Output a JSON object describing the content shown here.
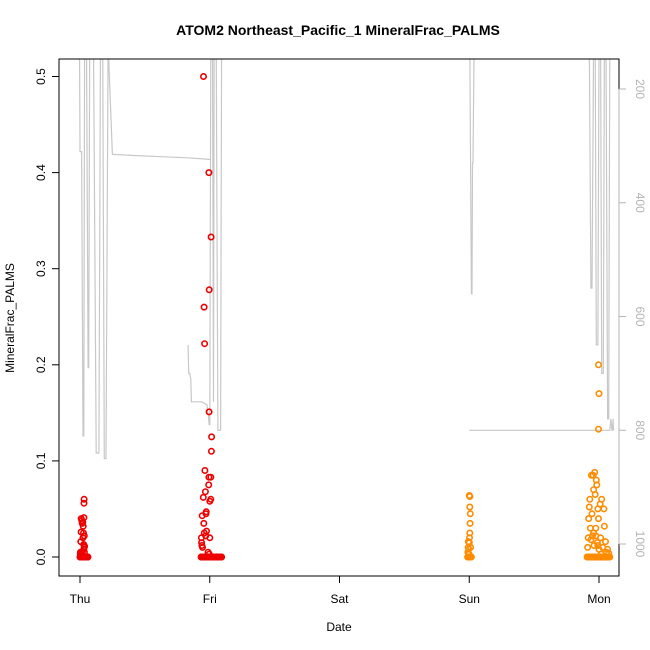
{
  "chart_data": {
    "type": "scatter",
    "title": "ATOM2 Northeast_Pacific_1 MineralFrac_PALMS",
    "xlabel": "Date",
    "ylabel": "MineralFrac_PALMS",
    "x_ticks": [
      "Thu",
      "Fri",
      "Sat",
      "Sun",
      "Mon"
    ],
    "ylim": [
      0,
      0.52
    ],
    "y_ticks": [
      "0.0",
      "0.1",
      "0.2",
      "0.3",
      "0.4",
      "0.5"
    ],
    "y2_ticks": [
      "200",
      "400",
      "600",
      "800",
      "1000"
    ],
    "y2lim": [
      1050,
      120
    ],
    "grid": false,
    "colors": {
      "series1": "#ee0000",
      "series2": "#ff8c00",
      "altitude": "#c8c8c8",
      "axis": "#000000",
      "right_axis": "#b4b4b4"
    },
    "series": [
      {
        "color": "#ee0000",
        "points": [
          [
            0.0,
            0
          ],
          [
            0.03,
            0
          ],
          [
            0.06,
            0
          ],
          [
            0.09,
            0
          ],
          [
            0.12,
            0
          ],
          [
            0.15,
            0
          ],
          [
            0.18,
            0
          ],
          [
            0.21,
            0
          ],
          [
            0.24,
            0
          ],
          [
            0.27,
            0
          ],
          [
            0.3,
            0
          ],
          [
            0.33,
            0
          ],
          [
            0.36,
            0
          ],
          [
            0.39,
            0
          ],
          [
            0.42,
            0
          ],
          [
            0.45,
            0
          ],
          [
            0.48,
            0
          ],
          [
            0.51,
            0
          ],
          [
            0.54,
            0
          ],
          [
            0.57,
            0
          ],
          [
            0.6,
            0
          ],
          [
            0.63,
            0
          ],
          [
            0.66,
            0
          ],
          [
            0.69,
            0
          ],
          [
            0.72,
            0
          ],
          [
            0.75,
            0
          ],
          [
            0.78,
            0
          ],
          [
            0.81,
            0
          ],
          [
            0.84,
            0
          ],
          [
            0.87,
            0
          ],
          [
            0.9,
            0
          ],
          [
            0.93,
            0
          ],
          [
            0.96,
            0
          ],
          [
            0.99,
            0
          ],
          [
            1.02,
            0
          ],
          [
            1.05,
            0
          ],
          [
            1.08,
            0
          ],
          [
            1.11,
            0
          ],
          [
            1.14,
            0
          ],
          [
            1.17,
            0
          ],
          [
            1.2,
            0
          ],
          [
            1.23,
            0
          ],
          [
            1.26,
            0
          ],
          [
            1.29,
            0
          ],
          [
            1.32,
            0
          ],
          [
            1.35,
            0
          ],
          [
            1.38,
            0
          ],
          [
            1.41,
            0
          ],
          [
            1.44,
            0
          ],
          [
            1.47,
            0
          ],
          [
            0.06,
            0.003
          ],
          [
            0.1,
            0.005
          ],
          [
            0.15,
            0.016
          ],
          [
            0.2,
            0.026
          ],
          [
            0.22,
            0.04
          ],
          [
            0.28,
            0.002
          ],
          [
            0.33,
            0.038
          ],
          [
            0.4,
            0.035
          ],
          [
            0.45,
            0.005
          ],
          [
            0.52,
            0.036
          ],
          [
            0.55,
            0.02
          ],
          [
            0.6,
            0.032
          ],
          [
            0.65,
            0.025
          ],
          [
            0.68,
            0.013
          ],
          [
            0.7,
            0.008
          ],
          [
            0.72,
            0.041
          ],
          [
            0.74,
            0.056
          ],
          [
            0.76,
            0.06
          ],
          [
            0.78,
            0.01
          ],
          [
            0.8,
            0.022
          ],
          [
            0.82,
            0.005
          ],
          [
            0.85,
            0.011
          ],
          [
            22.4,
            0
          ],
          [
            22.5,
            0
          ],
          [
            22.6,
            0
          ],
          [
            22.7,
            0
          ],
          [
            22.8,
            0
          ],
          [
            22.9,
            0
          ],
          [
            23.0,
            0
          ],
          [
            23.1,
            0
          ],
          [
            23.2,
            0
          ],
          [
            23.3,
            0
          ],
          [
            23.4,
            0
          ],
          [
            23.5,
            0
          ],
          [
            23.6,
            0
          ],
          [
            23.7,
            0
          ],
          [
            23.8,
            0
          ],
          [
            23.9,
            0
          ],
          [
            24.0,
            0
          ],
          [
            24.1,
            0
          ],
          [
            24.2,
            0
          ],
          [
            24.3,
            0
          ],
          [
            24.4,
            0
          ],
          [
            24.5,
            0
          ],
          [
            24.6,
            0
          ],
          [
            24.7,
            0
          ],
          [
            24.8,
            0
          ],
          [
            24.9,
            0
          ],
          [
            25.0,
            0
          ],
          [
            25.1,
            0
          ],
          [
            25.2,
            0
          ],
          [
            25.3,
            0
          ],
          [
            25.4,
            0
          ],
          [
            25.5,
            0
          ],
          [
            25.6,
            0
          ],
          [
            25.7,
            0
          ],
          [
            25.8,
            0
          ],
          [
            25.9,
            0
          ],
          [
            26.0,
            0
          ],
          [
            26.1,
            0
          ],
          [
            26.2,
            0
          ],
          [
            22.45,
            0.02
          ],
          [
            22.5,
            0.015
          ],
          [
            22.55,
            0.012
          ],
          [
            22.6,
            0.043
          ],
          [
            22.65,
            0.01
          ],
          [
            22.8,
            0.062
          ],
          [
            22.9,
            0.035
          ],
          [
            23.0,
            0.025
          ],
          [
            23.1,
            0.09
          ],
          [
            23.2,
            0.068
          ],
          [
            23.25,
            0.022
          ],
          [
            23.3,
            0.045
          ],
          [
            23.35,
            0.047
          ],
          [
            23.4,
            0.027
          ],
          [
            23.8,
            0.075
          ],
          [
            23.85,
            0.083
          ],
          [
            24.0,
            0.058
          ],
          [
            24.2,
            0.06
          ],
          [
            24.2,
            0.083
          ],
          [
            24.3,
            0.11
          ],
          [
            24.35,
            0.125
          ],
          [
            24.0,
            0.02
          ],
          [
            23.9,
            0.003
          ],
          [
            23.7,
            0.005
          ],
          [
            22.95,
            0.26
          ],
          [
            23.05,
            0.222
          ],
          [
            23.88,
            0.151
          ],
          [
            23.9,
            0.278
          ],
          [
            23.85,
            0.4
          ],
          [
            22.85,
            0.5
          ],
          [
            24.25,
            0.333
          ]
        ]
      },
      {
        "color": "#ff8c00",
        "points": [
          [
            71.7,
            0
          ],
          [
            71.8,
            0
          ],
          [
            71.9,
            0
          ],
          [
            72.0,
            0
          ],
          [
            72.1,
            0
          ],
          [
            72.2,
            0
          ],
          [
            72.3,
            0
          ],
          [
            72.4,
            0
          ],
          [
            71.75,
            0.005
          ],
          [
            71.8,
            0.01
          ],
          [
            71.85,
            0.016
          ],
          [
            71.9,
            0.008
          ],
          [
            72.0,
            0.015
          ],
          [
            72.05,
            0.02
          ],
          [
            72.1,
            0.025
          ],
          [
            72.15,
            0.035
          ],
          [
            72.2,
            0.045
          ],
          [
            71.95,
            0.003
          ],
          [
            72.1,
            0.052
          ],
          [
            72.0,
            0.064
          ],
          [
            72.1,
            0.063
          ],
          [
            72.25,
            0.01
          ],
          [
            93.8,
            0
          ],
          [
            93.9,
            0
          ],
          [
            94.0,
            0
          ],
          [
            94.1,
            0
          ],
          [
            94.2,
            0
          ],
          [
            94.3,
            0
          ],
          [
            94.4,
            0
          ],
          [
            94.5,
            0
          ],
          [
            94.6,
            0
          ],
          [
            94.7,
            0
          ],
          [
            94.8,
            0
          ],
          [
            94.9,
            0
          ],
          [
            95.0,
            0
          ],
          [
            95.1,
            0
          ],
          [
            95.2,
            0
          ],
          [
            95.3,
            0
          ],
          [
            95.4,
            0
          ],
          [
            95.5,
            0
          ],
          [
            95.6,
            0
          ],
          [
            95.7,
            0
          ],
          [
            95.8,
            0
          ],
          [
            95.9,
            0
          ],
          [
            96.0,
            0
          ],
          [
            96.1,
            0
          ],
          [
            96.2,
            0
          ],
          [
            96.3,
            0
          ],
          [
            96.4,
            0
          ],
          [
            96.5,
            0
          ],
          [
            96.6,
            0
          ],
          [
            96.7,
            0
          ],
          [
            96.8,
            0
          ],
          [
            96.9,
            0
          ],
          [
            97.0,
            0
          ],
          [
            97.1,
            0
          ],
          [
            97.2,
            0
          ],
          [
            97.3,
            0
          ],
          [
            97.4,
            0
          ],
          [
            97.5,
            0
          ],
          [
            97.6,
            0
          ],
          [
            97.7,
            0
          ],
          [
            97.8,
            0
          ],
          [
            97.9,
            0
          ],
          [
            98.0,
            0
          ],
          [
            93.9,
            0.01
          ],
          [
            94.0,
            0.02
          ],
          [
            94.1,
            0.04
          ],
          [
            94.2,
            0.052
          ],
          [
            94.3,
            0.06
          ],
          [
            94.4,
            0.03
          ],
          [
            94.5,
            0.018
          ],
          [
            94.6,
            0.085
          ],
          [
            94.7,
            0.045
          ],
          [
            94.8,
            0.022
          ],
          [
            94.9,
            0.085
          ],
          [
            95.0,
            0.07
          ],
          [
            95.1,
            0.012
          ],
          [
            95.2,
            0.088
          ],
          [
            95.3,
            0.065
          ],
          [
            95.4,
            0.03
          ],
          [
            95.5,
            0.08
          ],
          [
            95.6,
            0.075
          ],
          [
            95.7,
            0.015
          ],
          [
            95.8,
            0.05
          ],
          [
            95.9,
            0.04
          ],
          [
            96.0,
            0.008
          ],
          [
            96.2,
            0.055
          ],
          [
            96.3,
            0.02
          ],
          [
            96.5,
            0.06
          ],
          [
            96.7,
            0.01
          ],
          [
            96.9,
            0.05
          ],
          [
            97.0,
            0.032
          ],
          [
            97.2,
            0.016
          ],
          [
            97.4,
            0.005
          ],
          [
            97.6,
            0.008
          ],
          [
            97.8,
            0.004
          ],
          [
            95.0,
            0.025
          ],
          [
            95.4,
            0.022
          ],
          [
            95.8,
            0.012
          ],
          [
            96.4,
            0.003
          ],
          [
            95.9,
            0.2
          ],
          [
            95.9,
            0.133
          ],
          [
            96.0,
            0.17
          ]
        ]
      }
    ],
    "altitude_line": {
      "color": "#c8c8c8",
      "points": [
        [
          -0.1,
          120
        ],
        [
          0.0,
          310
        ],
        [
          0.3,
          310
        ],
        [
          0.55,
          810
        ],
        [
          0.7,
          810
        ],
        [
          0.85,
          120
        ],
        [
          1.2,
          120
        ],
        [
          1.5,
          690
        ],
        [
          1.6,
          690
        ],
        [
          1.8,
          120
        ],
        [
          2.3,
          120
        ],
        [
          2.5,
          120
        ],
        [
          3.0,
          840
        ],
        [
          3.5,
          840
        ],
        [
          3.8,
          120
        ],
        [
          4.2,
          120
        ],
        [
          4.5,
          850
        ],
        [
          4.8,
          850
        ],
        [
          5.2,
          120
        ],
        [
          6.0,
          315
        ],
        [
          10,
          317
        ],
        [
          15,
          319
        ],
        [
          20,
          321
        ],
        [
          24.2,
          324
        ],
        [
          20.0,
          650
        ],
        [
          20.1,
          700
        ],
        [
          20.3,
          700
        ],
        [
          20.5,
          710
        ],
        [
          20.6,
          750
        ],
        [
          22,
          750
        ],
        [
          22.5,
          750
        ],
        [
          23.5,
          755
        ],
        [
          23.6,
          770
        ],
        [
          23.7,
          770
        ],
        [
          23.9,
          790
        ],
        [
          24.0,
          790
        ],
        [
          24.2,
          120
        ],
        [
          24.5,
          120
        ],
        [
          24.7,
          750
        ],
        [
          24.8,
          120
        ],
        [
          25.2,
          120
        ],
        [
          25.5,
          800
        ],
        [
          26.0,
          800
        ],
        [
          26.2,
          120
        ],
        [
          72.0,
          120
        ],
        [
          72.1,
          120
        ],
        [
          72.4,
          560
        ],
        [
          72.5,
          560
        ],
        [
          72.6,
          330
        ],
        [
          72.7,
          330
        ],
        [
          72.9,
          120
        ],
        [
          72.0,
          800
        ],
        [
          80,
          800
        ],
        [
          88,
          800
        ],
        [
          94,
          800
        ],
        [
          96,
          800
        ],
        [
          97,
          800
        ],
        [
          98.0,
          800
        ],
        [
          98.2,
          780
        ],
        [
          98.4,
          800
        ],
        [
          98.5,
          800
        ],
        [
          98.6,
          780
        ],
        [
          98.7,
          800
        ],
        [
          94.0,
          120
        ],
        [
          94.2,
          120
        ],
        [
          94.5,
          550
        ],
        [
          94.7,
          550
        ],
        [
          95.0,
          120
        ],
        [
          95.3,
          120
        ],
        [
          95.5,
          650
        ],
        [
          95.8,
          650
        ],
        [
          96.0,
          120
        ],
        [
          96.3,
          120
        ],
        [
          96.5,
          700
        ],
        [
          96.8,
          700
        ],
        [
          97.0,
          120
        ],
        [
          97.3,
          120
        ],
        [
          97.6,
          780
        ],
        [
          97.8,
          780
        ],
        [
          98.0,
          120
        ]
      ]
    }
  }
}
